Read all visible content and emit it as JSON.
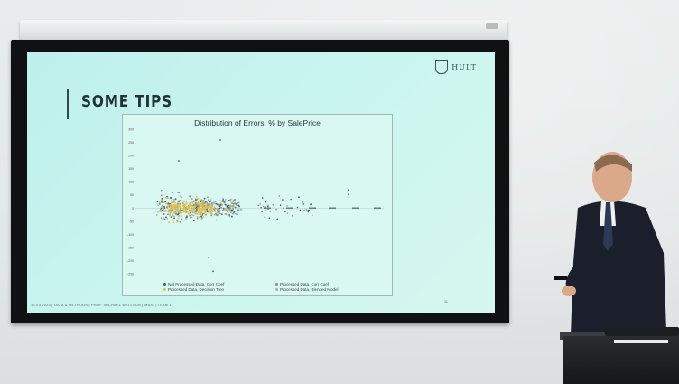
{
  "slide": {
    "title": "SOME TIPS",
    "logo_text": "HULT",
    "page_number": "11",
    "footer": "12.03.2023 | DATA & METHODS | PROF. MICHAEL WELLSON | MBAI | TEAM 1"
  },
  "chart_data": {
    "type": "scatter",
    "title": "Distribution of Errors, % by SalePrice",
    "xlabel": "",
    "ylabel": "",
    "y_ticks": [
      "300",
      "250",
      "200",
      "150",
      "100",
      "50",
      "0",
      "-50",
      "-100",
      "-150",
      "-200",
      "-250"
    ],
    "legend": [
      "Not Processed Data, Corr Coef",
      "Processed Data, Corr Coef",
      "Processed Data, Decision Tree",
      "Processed Data, Blended Model"
    ],
    "legend_placement": "bottom",
    "series_colors": [
      "#4a6070",
      "#8a8f95",
      "#e0c24a",
      "#9ab0b8"
    ]
  },
  "colors": {
    "slide_bg": "#c4f3ed",
    "wall": "#e6e9e9",
    "frame": "#0f1113"
  }
}
